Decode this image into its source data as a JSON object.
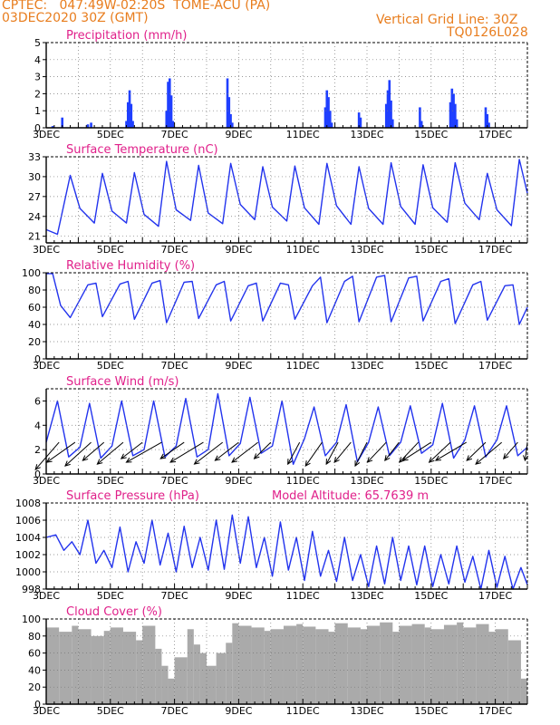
{
  "header": {
    "line1": "CPTEC:   047:49W-02:20S  TOME-ACU (PA)",
    "line2": "03DEC2020 30Z (GMT)",
    "right1": "Vertical Grid Line: 30Z",
    "right2": "TQ0126L028",
    "altitude": "Model Altitude: 65.7639 m"
  },
  "colors": {
    "header": "#e87d1e",
    "panel_title": "#e0208a",
    "series": "#2233ee",
    "bars": "#1f3fff",
    "cloud": "#aaaaaa",
    "axis": "#000000"
  },
  "x_axis": {
    "start": "03DEC2020 00Z",
    "end": "18DEC2020 00Z",
    "tick_labels": [
      "3DEC",
      "5DEC",
      "7DEC",
      "9DEC",
      "11DEC",
      "13DEC",
      "15DEC",
      "17DEC"
    ],
    "tick_days": [
      3,
      5,
      7,
      9,
      11,
      13,
      15,
      17
    ]
  },
  "chart_data": [
    {
      "type": "bar",
      "title": "Precipitation (mm/h)",
      "ylim": [
        0,
        5
      ],
      "yticks": [
        0,
        1,
        2,
        3,
        4,
        5
      ],
      "grid": "dotted",
      "x": [
        3.2,
        3.5,
        4.3,
        4.4,
        5.5,
        5.55,
        5.6,
        5.65,
        5.7,
        6.75,
        6.8,
        6.85,
        6.9,
        6.95,
        8.65,
        8.7,
        8.75,
        8.8,
        11.7,
        11.75,
        11.8,
        11.85,
        11.9,
        12.75,
        12.8,
        13.6,
        13.65,
        13.7,
        13.75,
        13.8,
        14.65,
        14.7,
        15.6,
        15.65,
        15.7,
        15.75,
        15.8,
        16.7,
        16.75,
        16.8
      ],
      "values": [
        0.1,
        0.6,
        0.2,
        0.3,
        0.4,
        1.5,
        2.2,
        1.4,
        0.4,
        1.0,
        2.7,
        2.9,
        1.9,
        0.4,
        2.9,
        1.8,
        0.8,
        0.3,
        1.2,
        2.2,
        1.8,
        1.0,
        0.3,
        0.9,
        0.6,
        1.4,
        2.2,
        2.8,
        1.6,
        0.5,
        1.2,
        0.4,
        1.5,
        2.3,
        2.0,
        1.4,
        0.5,
        1.2,
        0.8,
        0.3
      ]
    },
    {
      "type": "line",
      "title": "Surface Temperature (nC)",
      "ylim": [
        20,
        33
      ],
      "yticks": [
        21,
        24,
        27,
        30,
        33
      ],
      "grid": "dotted",
      "series": [
        {
          "x": [
            3.0,
            3.35,
            3.75,
            4.05,
            4.5,
            4.75,
            5.05,
            5.5,
            5.75,
            6.05,
            6.5,
            6.75,
            7.05,
            7.5,
            7.75,
            8.05,
            8.5,
            8.75,
            9.05,
            9.5,
            9.75,
            10.05,
            10.5,
            10.75,
            11.05,
            11.5,
            11.75,
            12.05,
            12.5,
            12.75,
            13.05,
            13.5,
            13.75,
            14.05,
            14.5,
            14.75,
            15.05,
            15.5,
            15.75,
            16.05,
            16.5,
            16.75,
            17.05,
            17.5,
            17.75,
            18.0
          ],
          "y": [
            22.0,
            21.3,
            30.2,
            25.2,
            23.0,
            30.5,
            24.8,
            23.0,
            30.6,
            24.3,
            22.5,
            32.3,
            25.0,
            23.4,
            31.7,
            24.5,
            22.9,
            32.0,
            25.8,
            23.5,
            31.5,
            25.4,
            23.3,
            31.6,
            25.3,
            22.8,
            32.0,
            25.6,
            22.8,
            31.5,
            25.2,
            22.8,
            32.1,
            25.5,
            22.8,
            31.8,
            25.3,
            23.1,
            32.1,
            26.0,
            23.5,
            30.5,
            25.0,
            22.6,
            32.6,
            27.5
          ]
        }
      ]
    },
    {
      "type": "line",
      "title": "Relative Humidity (%)",
      "ylim": [
        0,
        100
      ],
      "yticks": [
        0,
        20,
        40,
        60,
        80,
        100
      ],
      "grid": "dotted",
      "series": [
        {
          "x": [
            3.0,
            3.2,
            3.45,
            3.75,
            4.3,
            4.55,
            4.75,
            5.3,
            5.55,
            5.75,
            6.3,
            6.55,
            6.75,
            7.3,
            7.55,
            7.75,
            8.3,
            8.55,
            8.75,
            9.3,
            9.55,
            9.75,
            10.3,
            10.55,
            10.75,
            11.3,
            11.55,
            11.75,
            12.3,
            12.55,
            12.75,
            13.3,
            13.55,
            13.75,
            14.3,
            14.55,
            14.75,
            15.3,
            15.55,
            15.75,
            16.3,
            16.55,
            16.75,
            17.3,
            17.55,
            17.75,
            18.0
          ],
          "y": [
            99,
            99,
            62,
            48,
            86,
            88,
            49,
            87,
            90,
            46,
            88,
            91,
            42,
            89,
            90,
            47,
            86,
            90,
            44,
            85,
            88,
            44,
            88,
            86,
            46,
            85,
            95,
            42,
            90,
            96,
            43,
            95,
            97,
            43,
            94,
            96,
            44,
            90,
            93,
            41,
            86,
            90,
            45,
            85,
            86,
            40,
            60
          ]
        }
      ]
    },
    {
      "type": "line",
      "title": "Surface Wind (m/s)",
      "ylim": [
        0,
        7
      ],
      "yticks": [
        0,
        2,
        4,
        6
      ],
      "grid": "dotted",
      "series": [
        {
          "x": [
            3.0,
            3.35,
            3.7,
            4.05,
            4.35,
            4.7,
            5.05,
            5.35,
            5.7,
            6.05,
            6.35,
            6.7,
            7.05,
            7.35,
            7.7,
            8.05,
            8.35,
            8.7,
            9.05,
            9.35,
            9.7,
            10.05,
            10.35,
            10.7,
            11.05,
            11.35,
            11.7,
            12.05,
            12.35,
            12.7,
            13.05,
            13.35,
            13.7,
            14.05,
            14.35,
            14.7,
            15.05,
            15.35,
            15.7,
            16.05,
            16.35,
            16.7,
            17.05,
            17.35,
            17.7,
            18.0
          ],
          "y": [
            2.6,
            6.0,
            1.4,
            2.2,
            5.8,
            1.3,
            2.3,
            6.0,
            1.5,
            2.0,
            6.0,
            1.4,
            2.3,
            6.2,
            1.4,
            2.0,
            6.6,
            1.5,
            2.5,
            6.3,
            1.7,
            2.3,
            6.0,
            0.8,
            2.9,
            5.5,
            1.5,
            2.6,
            5.7,
            1.0,
            2.6,
            5.5,
            1.5,
            2.6,
            5.6,
            1.7,
            2.4,
            5.8,
            1.3,
            2.8,
            5.6,
            1.4,
            2.8,
            5.6,
            1.5,
            2.2
          ]
        }
      ],
      "arrows": {
        "x": [
          3.4,
          3.9,
          4.4,
          4.8,
          5.4,
          6.0,
          6.6,
          7.3,
          7.9,
          8.5,
          9.0,
          9.6,
          10.0,
          10.9,
          11.6,
          12.1,
          12.5,
          13.0,
          13.6,
          14.0,
          14.6,
          15.0,
          15.6,
          16.1,
          16.7,
          17.2,
          17.7,
          18.0
        ],
        "u": [
          -1.0,
          -1.2,
          -1.1,
          -0.9,
          -1.1,
          -0.9,
          -1.5,
          -1.0,
          -1.4,
          -1.2,
          -1.0,
          -1.1,
          -0.7,
          -0.5,
          -0.7,
          -0.5,
          -0.7,
          -0.5,
          -0.8,
          -0.6,
          -0.8,
          -1.2,
          -0.9,
          -1.3,
          -0.8,
          -1.1,
          -0.6,
          -0.1
        ],
        "v": [
          -0.9,
          -0.5,
          -0.7,
          -0.4,
          -0.6,
          -0.3,
          -0.5,
          -0.3,
          -0.5,
          -0.6,
          -0.4,
          -0.5,
          -0.3,
          -0.6,
          -0.7,
          -0.6,
          -0.5,
          -0.7,
          -0.5,
          -0.4,
          -0.5,
          -0.4,
          -0.5,
          -0.4,
          -0.4,
          -0.6,
          -0.3,
          -0.4
        ]
      }
    },
    {
      "type": "line",
      "title": "Surface Pressure (hPa)",
      "ylim": [
        998,
        1008
      ],
      "yticks": [
        998,
        1000,
        1002,
        1004,
        1006,
        1008
      ],
      "grid": "dotted",
      "series": [
        {
          "x": [
            3.0,
            3.3,
            3.55,
            3.8,
            4.05,
            4.3,
            4.55,
            4.8,
            5.05,
            5.3,
            5.55,
            5.8,
            6.05,
            6.3,
            6.55,
            6.8,
            7.05,
            7.3,
            7.55,
            7.8,
            8.05,
            8.3,
            8.55,
            8.8,
            9.05,
            9.3,
            9.55,
            9.8,
            10.05,
            10.3,
            10.55,
            10.8,
            11.05,
            11.3,
            11.55,
            11.8,
            12.05,
            12.3,
            12.55,
            12.8,
            13.05,
            13.3,
            13.55,
            13.8,
            14.05,
            14.3,
            14.55,
            14.8,
            15.05,
            15.3,
            15.55,
            15.8,
            16.05,
            16.3,
            16.55,
            16.8,
            17.05,
            17.3,
            17.55,
            17.8,
            18.0
          ],
          "y": [
            1004.0,
            1004.3,
            1002.5,
            1003.5,
            1002.0,
            1006.0,
            1001.0,
            1002.5,
            1000.5,
            1005.2,
            1000.0,
            1003.5,
            1001.0,
            1006.0,
            1000.8,
            1004.5,
            1000.0,
            1005.3,
            1000.5,
            1004.0,
            1000.2,
            1006.0,
            1000.3,
            1006.6,
            1001.0,
            1006.4,
            1000.5,
            1004.0,
            999.5,
            1005.8,
            1000.2,
            1004.0,
            999.0,
            1004.7,
            999.5,
            1002.5,
            998.9,
            1004.0,
            999.0,
            1002.0,
            998.3,
            1003.0,
            998.6,
            1004.0,
            999.0,
            1003.0,
            998.5,
            1003.0,
            998.3,
            1002.0,
            998.6,
            1003.0,
            998.8,
            1001.8,
            998.0,
            1002.5,
            998.2,
            1001.8,
            998.0,
            1000.5,
            998.5
          ]
        }
      ]
    },
    {
      "type": "area",
      "title": "Cloud Cover (%)",
      "ylim": [
        0,
        100
      ],
      "yticks": [
        0,
        20,
        40,
        60,
        80,
        100
      ],
      "grid": "dotted",
      "x": [
        3.0,
        3.4,
        3.8,
        4.0,
        4.4,
        4.8,
        5.0,
        5.4,
        5.8,
        6.0,
        6.4,
        6.6,
        6.8,
        7.0,
        7.4,
        7.6,
        7.8,
        8.0,
        8.3,
        8.6,
        8.8,
        9.0,
        9.4,
        9.8,
        10.0,
        10.4,
        10.8,
        11.0,
        11.4,
        11.8,
        12.0,
        12.4,
        12.8,
        13.0,
        13.4,
        13.8,
        14.0,
        14.4,
        14.8,
        15.0,
        15.4,
        15.8,
        16.0,
        16.4,
        16.8,
        17.0,
        17.4,
        17.8,
        18.0
      ],
      "values": [
        90,
        85,
        92,
        88,
        80,
        86,
        90,
        85,
        75,
        92,
        65,
        45,
        30,
        55,
        88,
        70,
        60,
        45,
        60,
        72,
        95,
        92,
        90,
        86,
        88,
        92,
        94,
        91,
        88,
        85,
        95,
        90,
        88,
        92,
        96,
        85,
        92,
        94,
        90,
        88,
        93,
        96,
        90,
        94,
        85,
        88,
        75,
        30,
        70
      ]
    }
  ]
}
